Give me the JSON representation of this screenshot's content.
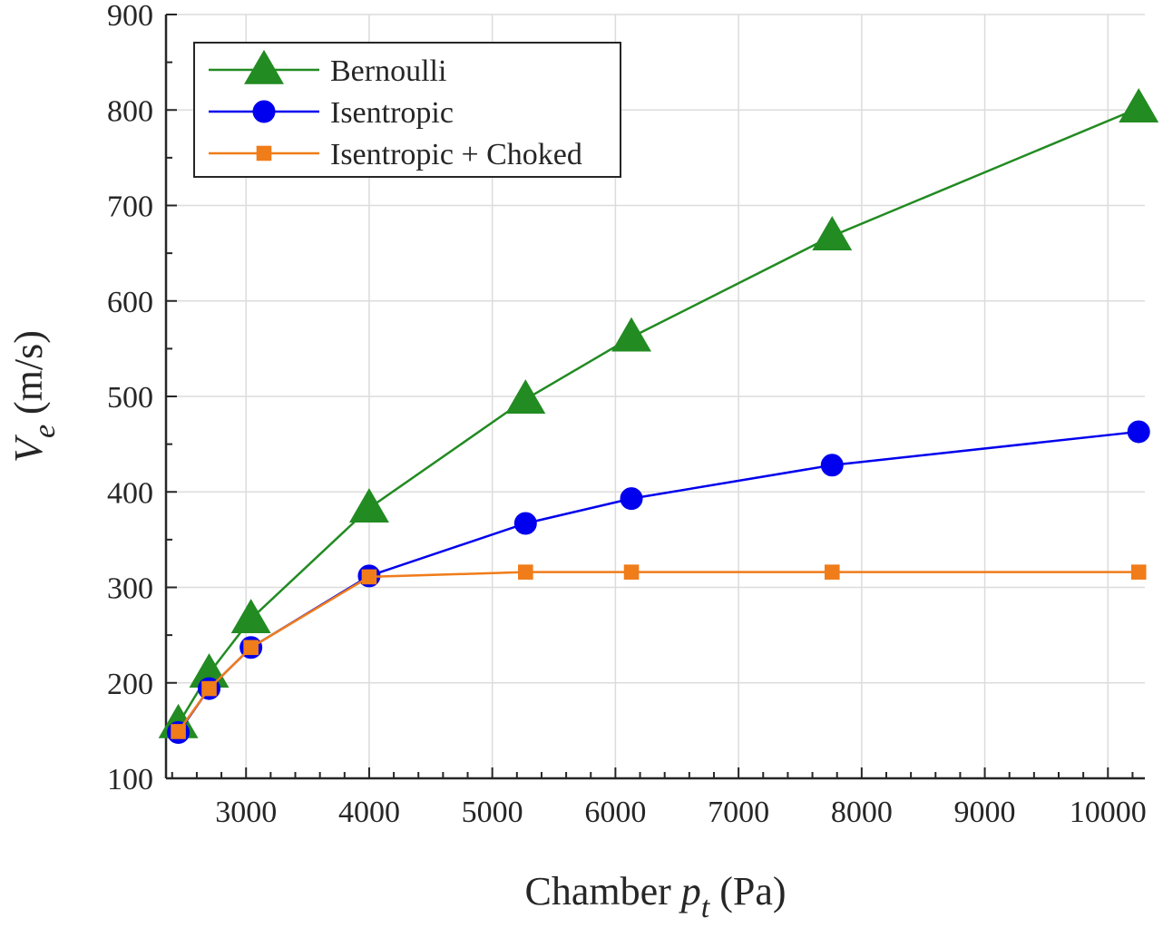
{
  "chart_data": {
    "type": "line",
    "xlabel": {
      "main": "Chamber ",
      "var": "p",
      "sub": "t",
      "unit": " (Pa)"
    },
    "ylabel": {
      "var": "V",
      "sub": "e",
      "unit": " (m/s)"
    },
    "xlim": [
      2350,
      10300
    ],
    "ylim": [
      100,
      900
    ],
    "xticks": [
      3000,
      4000,
      5000,
      6000,
      7000,
      8000,
      9000,
      10000
    ],
    "yticks": [
      100,
      200,
      300,
      400,
      500,
      600,
      700,
      800,
      900
    ],
    "grid": true,
    "legend_position": "top-left",
    "series": [
      {
        "name": "Bernoulli",
        "color": "#228b22",
        "marker": "triangle",
        "x": [
          2450,
          2700,
          3040,
          4000,
          5270,
          6130,
          7760,
          10250
        ],
        "y": [
          157,
          210,
          267,
          383,
          497,
          562,
          668,
          802
        ]
      },
      {
        "name": "Isentropic",
        "color": "#0000ee",
        "marker": "circle",
        "x": [
          2450,
          2700,
          3040,
          4000,
          5270,
          6130,
          7760,
          10250
        ],
        "y": [
          148,
          194,
          237,
          312,
          367,
          393,
          428,
          463
        ]
      },
      {
        "name": "Isentropic + Choked",
        "color": "#f07c1a",
        "marker": "square",
        "x": [
          2450,
          2700,
          3040,
          4000,
          5270,
          6130,
          7760,
          10250
        ],
        "y": [
          149,
          194,
          237,
          311,
          316,
          316,
          316,
          316
        ]
      }
    ]
  }
}
